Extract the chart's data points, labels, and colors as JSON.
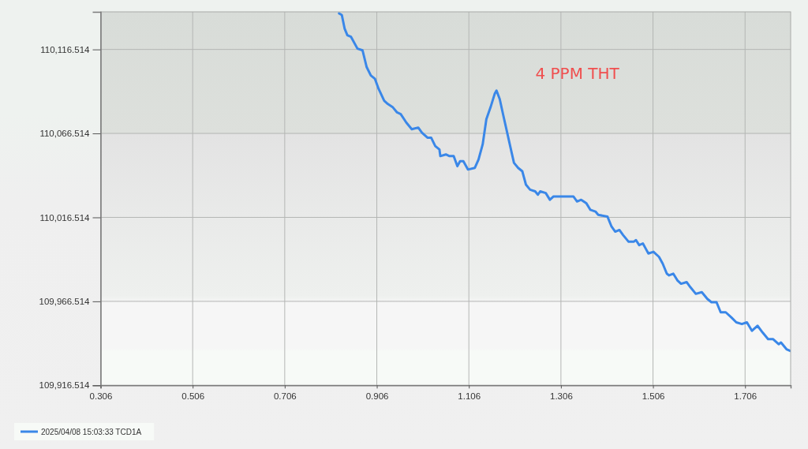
{
  "chart_data": {
    "type": "line",
    "annotations": [
      "4 PPM THT"
    ],
    "xlim": [
      0.306,
      1.805
    ],
    "xticks": [
      0.306,
      0.506,
      0.706,
      0.906,
      1.106,
      1.306,
      1.506,
      1.706
    ],
    "ylim": [
      109916.514,
      110138.9
    ],
    "yticks": [
      {
        "value": 109916.514,
        "label": "109,916.514"
      },
      {
        "value": 109966.514,
        "label": "109,966.514"
      },
      {
        "value": 110016.514,
        "label": "110,016.514"
      },
      {
        "value": 110066.514,
        "label": "110,066.514"
      },
      {
        "value": 110116.514,
        "label": "110,116.514"
      }
    ],
    "grid": true,
    "legend": "bottom left",
    "x": [
      0.824,
      0.83,
      0.836,
      0.842,
      0.85,
      0.864,
      0.875,
      0.884,
      0.893,
      0.902,
      0.91,
      0.922,
      0.93,
      0.941,
      0.95,
      0.958,
      0.97,
      0.982,
      0.996,
      1.004,
      1.016,
      1.024,
      1.033,
      1.042,
      1.044,
      1.056,
      1.064,
      1.073,
      1.081,
      1.087,
      1.094,
      1.104,
      1.119,
      1.127,
      1.136,
      1.144,
      1.153,
      1.162,
      1.166,
      1.173,
      1.181,
      1.19,
      1.199,
      1.204,
      1.213,
      1.222,
      1.23,
      1.239,
      1.25,
      1.256,
      1.261,
      1.273,
      1.282,
      1.29,
      1.301,
      1.321,
      1.333,
      1.341,
      1.35,
      1.361,
      1.37,
      1.381,
      1.387,
      1.407,
      1.416,
      1.424,
      1.433,
      1.441,
      1.453,
      1.464,
      1.469,
      1.476,
      1.484,
      1.49,
      1.496,
      1.507,
      1.519,
      1.527,
      1.536,
      1.541,
      1.55,
      1.559,
      1.567,
      1.579,
      1.587,
      1.599,
      1.612,
      1.624,
      1.633,
      1.644,
      1.653,
      1.664,
      1.676,
      1.687,
      1.699,
      1.71,
      1.721,
      1.733,
      1.744,
      1.756,
      1.767,
      1.779,
      1.784,
      1.796,
      1.804
    ],
    "series": [
      {
        "name": "2025/04/08 15:03:33 TCD1A",
        "color": "#3a87e8",
        "values": [
          110138,
          110137,
          110129,
          110125,
          110124,
          110117,
          110116,
          110106,
          110101,
          110099,
          110093,
          110086,
          110084,
          110082,
          110079,
          110078,
          110073,
          110069,
          110070,
          110067,
          110064,
          110064,
          110059,
          110057,
          110053,
          110054,
          110053,
          110053,
          110047,
          110050,
          110050,
          110045,
          110046,
          110051,
          110060,
          110075,
          110082,
          110090,
          110092,
          110087,
          110077,
          110066,
          110055,
          110049,
          110046,
          110044,
          110036,
          110033,
          110032,
          110030,
          110032,
          110031,
          110027,
          110029,
          110029,
          110029,
          110029,
          110026,
          110027,
          110025,
          110021,
          110020,
          110018,
          110017,
          110011,
          110008,
          110009,
          110006,
          110002,
          110002,
          110003,
          110000,
          110001,
          109998,
          109995,
          109996,
          109993,
          109989,
          109983,
          109982,
          109983,
          109979,
          109977,
          109978,
          109975,
          109971,
          109972,
          109968,
          109966,
          109966,
          109960,
          109960,
          109957,
          109954,
          109953,
          109954,
          109949,
          109952,
          109948,
          109944,
          109944,
          109941,
          109942,
          109938,
          109937
        ]
      }
    ]
  }
}
